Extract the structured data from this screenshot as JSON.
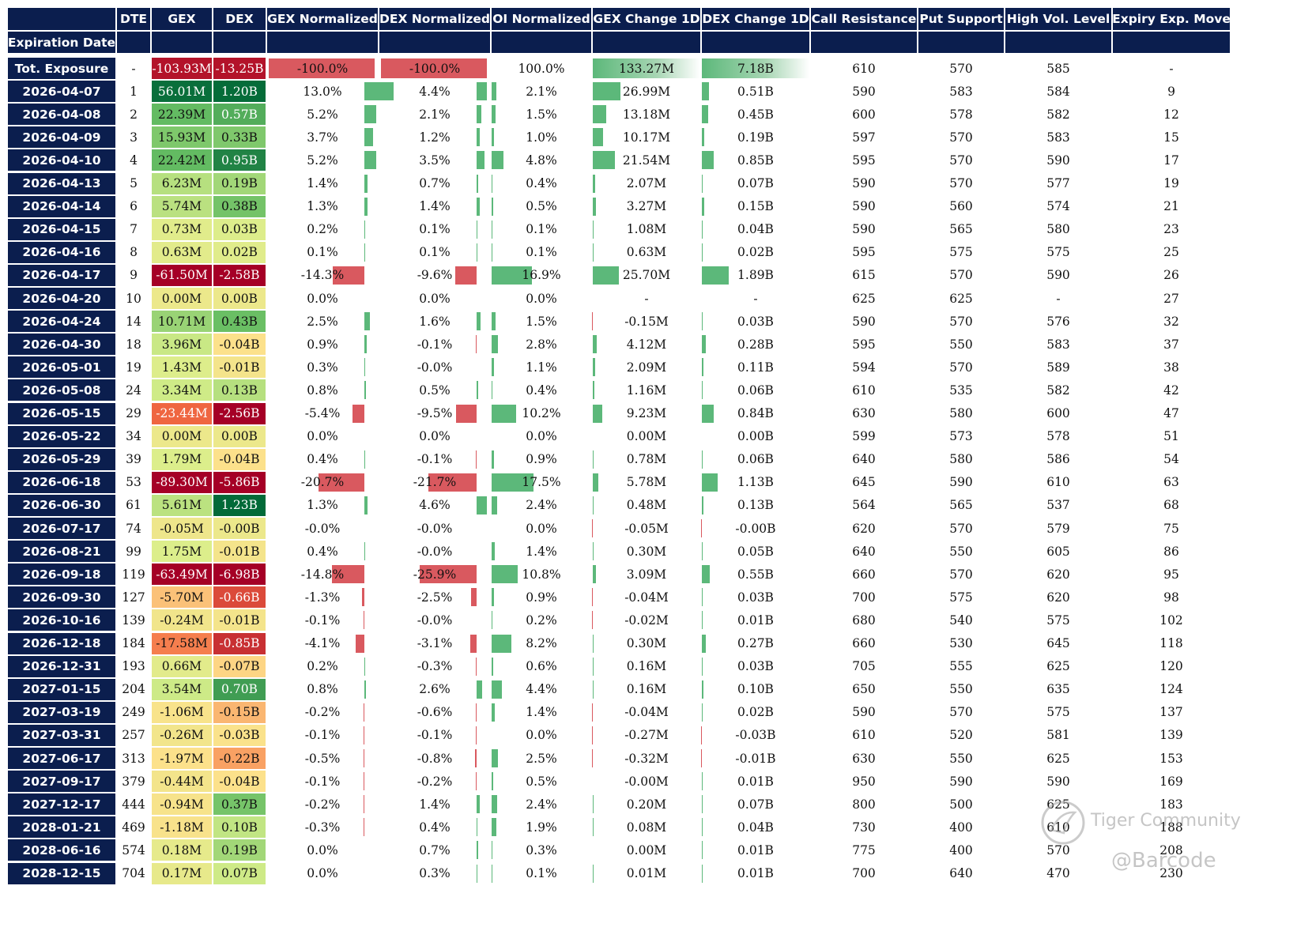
{
  "columns": [
    "DTE",
    "GEX",
    "DEX",
    "GEX Normalized",
    "DEX Normalized",
    "OI Normalized",
    "GEX Change 1D",
    "DEX Change 1D",
    "Call Resistance",
    "Put Support",
    "High Vol. Level",
    "Expiry Exp. Move"
  ],
  "index_label": "Expiration Date",
  "colors": {
    "header_bg": "#0b1e4e",
    "header_text": "#ffffff",
    "bar_positive": "#5cb87a",
    "bar_negative": "#d9595f",
    "gex_scale": [
      "#a50026",
      "#f46d43",
      "#fee08b",
      "#d9ef8b",
      "#66bd63",
      "#006837"
    ]
  },
  "total": {
    "label": "Tot. Exposure",
    "dte": "-",
    "gex": "-103.93M",
    "gex_v": -103.93,
    "dex": "-13.25B",
    "dex_v": -13.25,
    "gex_norm": "-100.0%",
    "gex_norm_v": -100.0,
    "dex_norm": "-100.0%",
    "dex_norm_v": -100.0,
    "oi_norm": "100.0%",
    "oi_norm_v": 100.0,
    "gex_chg": "133.27M",
    "gex_chg_v": 133.27,
    "dex_chg": "7.18B",
    "dex_chg_v": 7.18,
    "call_res": "610",
    "put_sup": "570",
    "hvl": "585",
    "exp_move": "-"
  },
  "rows": [
    {
      "date": "2026-04-07",
      "dte": "1",
      "gex": "56.01M",
      "gex_v": 56.01,
      "dex": "1.20B",
      "dex_v": 1.2,
      "gex_norm": "13.0%",
      "gex_norm_v": 13.0,
      "dex_norm": "4.4%",
      "dex_norm_v": 4.4,
      "oi_norm": "2.1%",
      "oi_norm_v": 2.1,
      "gex_chg": "26.99M",
      "gex_chg_v": 26.99,
      "dex_chg": "0.51B",
      "dex_chg_v": 0.51,
      "call_res": "590",
      "put_sup": "583",
      "hvl": "584",
      "exp_move": "9"
    },
    {
      "date": "2026-04-08",
      "dte": "2",
      "gex": "22.39M",
      "gex_v": 22.39,
      "dex": "0.57B",
      "dex_v": 0.57,
      "gex_norm": "5.2%",
      "gex_norm_v": 5.2,
      "dex_norm": "2.1%",
      "dex_norm_v": 2.1,
      "oi_norm": "1.5%",
      "oi_norm_v": 1.5,
      "gex_chg": "13.18M",
      "gex_chg_v": 13.18,
      "dex_chg": "0.45B",
      "dex_chg_v": 0.45,
      "call_res": "600",
      "put_sup": "578",
      "hvl": "582",
      "exp_move": "12"
    },
    {
      "date": "2026-04-09",
      "dte": "3",
      "gex": "15.93M",
      "gex_v": 15.93,
      "dex": "0.33B",
      "dex_v": 0.33,
      "gex_norm": "3.7%",
      "gex_norm_v": 3.7,
      "dex_norm": "1.2%",
      "dex_norm_v": 1.2,
      "oi_norm": "1.0%",
      "oi_norm_v": 1.0,
      "gex_chg": "10.17M",
      "gex_chg_v": 10.17,
      "dex_chg": "0.19B",
      "dex_chg_v": 0.19,
      "call_res": "597",
      "put_sup": "570",
      "hvl": "583",
      "exp_move": "15"
    },
    {
      "date": "2026-04-10",
      "dte": "4",
      "gex": "22.42M",
      "gex_v": 22.42,
      "dex": "0.95B",
      "dex_v": 0.95,
      "gex_norm": "5.2%",
      "gex_norm_v": 5.2,
      "dex_norm": "3.5%",
      "dex_norm_v": 3.5,
      "oi_norm": "4.8%",
      "oi_norm_v": 4.8,
      "gex_chg": "21.54M",
      "gex_chg_v": 21.54,
      "dex_chg": "0.85B",
      "dex_chg_v": 0.85,
      "call_res": "595",
      "put_sup": "570",
      "hvl": "590",
      "exp_move": "17"
    },
    {
      "date": "2026-04-13",
      "dte": "5",
      "gex": "6.23M",
      "gex_v": 6.23,
      "dex": "0.19B",
      "dex_v": 0.19,
      "gex_norm": "1.4%",
      "gex_norm_v": 1.4,
      "dex_norm": "0.7%",
      "dex_norm_v": 0.7,
      "oi_norm": "0.4%",
      "oi_norm_v": 0.4,
      "gex_chg": "2.07M",
      "gex_chg_v": 2.07,
      "dex_chg": "0.07B",
      "dex_chg_v": 0.07,
      "call_res": "590",
      "put_sup": "570",
      "hvl": "577",
      "exp_move": "19"
    },
    {
      "date": "2026-04-14",
      "dte": "6",
      "gex": "5.74M",
      "gex_v": 5.74,
      "dex": "0.38B",
      "dex_v": 0.38,
      "gex_norm": "1.3%",
      "gex_norm_v": 1.3,
      "dex_norm": "1.4%",
      "dex_norm_v": 1.4,
      "oi_norm": "0.5%",
      "oi_norm_v": 0.5,
      "gex_chg": "3.27M",
      "gex_chg_v": 3.27,
      "dex_chg": "0.15B",
      "dex_chg_v": 0.15,
      "call_res": "590",
      "put_sup": "560",
      "hvl": "574",
      "exp_move": "21"
    },
    {
      "date": "2026-04-15",
      "dte": "7",
      "gex": "0.73M",
      "gex_v": 0.73,
      "dex": "0.03B",
      "dex_v": 0.03,
      "gex_norm": "0.2%",
      "gex_norm_v": 0.2,
      "dex_norm": "0.1%",
      "dex_norm_v": 0.1,
      "oi_norm": "0.1%",
      "oi_norm_v": 0.1,
      "gex_chg": "1.08M",
      "gex_chg_v": 1.08,
      "dex_chg": "0.04B",
      "dex_chg_v": 0.04,
      "call_res": "590",
      "put_sup": "565",
      "hvl": "580",
      "exp_move": "23"
    },
    {
      "date": "2026-04-16",
      "dte": "8",
      "gex": "0.63M",
      "gex_v": 0.63,
      "dex": "0.02B",
      "dex_v": 0.02,
      "gex_norm": "0.1%",
      "gex_norm_v": 0.1,
      "dex_norm": "0.1%",
      "dex_norm_v": 0.1,
      "oi_norm": "0.1%",
      "oi_norm_v": 0.1,
      "gex_chg": "0.63M",
      "gex_chg_v": 0.63,
      "dex_chg": "0.02B",
      "dex_chg_v": 0.02,
      "call_res": "595",
      "put_sup": "575",
      "hvl": "575",
      "exp_move": "25"
    },
    {
      "date": "2026-04-17",
      "dte": "9",
      "gex": "-61.50M",
      "gex_v": -61.5,
      "dex": "-2.58B",
      "dex_v": -2.58,
      "gex_norm": "-14.3%",
      "gex_norm_v": -14.3,
      "dex_norm": "-9.6%",
      "dex_norm_v": -9.6,
      "oi_norm": "16.9%",
      "oi_norm_v": 16.9,
      "gex_chg": "25.70M",
      "gex_chg_v": 25.7,
      "dex_chg": "1.89B",
      "dex_chg_v": 1.89,
      "call_res": "615",
      "put_sup": "570",
      "hvl": "590",
      "exp_move": "26"
    },
    {
      "date": "2026-04-20",
      "dte": "10",
      "gex": "0.00M",
      "gex_v": 0.0,
      "dex": "0.00B",
      "dex_v": 0.0,
      "gex_norm": "0.0%",
      "gex_norm_v": 0.0,
      "dex_norm": "0.0%",
      "dex_norm_v": 0.0,
      "oi_norm": "0.0%",
      "oi_norm_v": 0.0,
      "gex_chg": "-",
      "gex_chg_v": 0,
      "dex_chg": "-",
      "dex_chg_v": 0,
      "call_res": "625",
      "put_sup": "625",
      "hvl": "-",
      "exp_move": "27"
    },
    {
      "date": "2026-04-24",
      "dte": "14",
      "gex": "10.71M",
      "gex_v": 10.71,
      "dex": "0.43B",
      "dex_v": 0.43,
      "gex_norm": "2.5%",
      "gex_norm_v": 2.5,
      "dex_norm": "1.6%",
      "dex_norm_v": 1.6,
      "oi_norm": "1.5%",
      "oi_norm_v": 1.5,
      "gex_chg": "-0.15M",
      "gex_chg_v": -0.15,
      "dex_chg": "0.03B",
      "dex_chg_v": 0.03,
      "call_res": "590",
      "put_sup": "570",
      "hvl": "576",
      "exp_move": "32"
    },
    {
      "date": "2026-04-30",
      "dte": "18",
      "gex": "3.96M",
      "gex_v": 3.96,
      "dex": "-0.04B",
      "dex_v": -0.04,
      "gex_norm": "0.9%",
      "gex_norm_v": 0.9,
      "dex_norm": "-0.1%",
      "dex_norm_v": -0.1,
      "oi_norm": "2.8%",
      "oi_norm_v": 2.8,
      "gex_chg": "4.12M",
      "gex_chg_v": 4.12,
      "dex_chg": "0.28B",
      "dex_chg_v": 0.28,
      "call_res": "595",
      "put_sup": "550",
      "hvl": "583",
      "exp_move": "37"
    },
    {
      "date": "2026-05-01",
      "dte": "19",
      "gex": "1.43M",
      "gex_v": 1.43,
      "dex": "-0.01B",
      "dex_v": -0.01,
      "gex_norm": "0.3%",
      "gex_norm_v": 0.3,
      "dex_norm": "-0.0%",
      "dex_norm_v": -0.0,
      "oi_norm": "1.1%",
      "oi_norm_v": 1.1,
      "gex_chg": "2.09M",
      "gex_chg_v": 2.09,
      "dex_chg": "0.11B",
      "dex_chg_v": 0.11,
      "call_res": "594",
      "put_sup": "570",
      "hvl": "589",
      "exp_move": "38"
    },
    {
      "date": "2026-05-08",
      "dte": "24",
      "gex": "3.34M",
      "gex_v": 3.34,
      "dex": "0.13B",
      "dex_v": 0.13,
      "gex_norm": "0.8%",
      "gex_norm_v": 0.8,
      "dex_norm": "0.5%",
      "dex_norm_v": 0.5,
      "oi_norm": "0.4%",
      "oi_norm_v": 0.4,
      "gex_chg": "1.16M",
      "gex_chg_v": 1.16,
      "dex_chg": "0.06B",
      "dex_chg_v": 0.06,
      "call_res": "610",
      "put_sup": "535",
      "hvl": "582",
      "exp_move": "42"
    },
    {
      "date": "2026-05-15",
      "dte": "29",
      "gex": "-23.44M",
      "gex_v": -23.44,
      "dex": "-2.56B",
      "dex_v": -2.56,
      "gex_norm": "-5.4%",
      "gex_norm_v": -5.4,
      "dex_norm": "-9.5%",
      "dex_norm_v": -9.5,
      "oi_norm": "10.2%",
      "oi_norm_v": 10.2,
      "gex_chg": "9.23M",
      "gex_chg_v": 9.23,
      "dex_chg": "0.84B",
      "dex_chg_v": 0.84,
      "call_res": "630",
      "put_sup": "580",
      "hvl": "600",
      "exp_move": "47"
    },
    {
      "date": "2026-05-22",
      "dte": "34",
      "gex": "0.00M",
      "gex_v": 0.0,
      "dex": "0.00B",
      "dex_v": 0.0,
      "gex_norm": "0.0%",
      "gex_norm_v": 0.0,
      "dex_norm": "0.0%",
      "dex_norm_v": 0.0,
      "oi_norm": "0.0%",
      "oi_norm_v": 0.0,
      "gex_chg": "0.00M",
      "gex_chg_v": 0.0,
      "dex_chg": "0.00B",
      "dex_chg_v": 0.0,
      "call_res": "599",
      "put_sup": "573",
      "hvl": "578",
      "exp_move": "51"
    },
    {
      "date": "2026-05-29",
      "dte": "39",
      "gex": "1.79M",
      "gex_v": 1.79,
      "dex": "-0.04B",
      "dex_v": -0.04,
      "gex_norm": "0.4%",
      "gex_norm_v": 0.4,
      "dex_norm": "-0.1%",
      "dex_norm_v": -0.1,
      "oi_norm": "0.9%",
      "oi_norm_v": 0.9,
      "gex_chg": "0.78M",
      "gex_chg_v": 0.78,
      "dex_chg": "0.06B",
      "dex_chg_v": 0.06,
      "call_res": "640",
      "put_sup": "580",
      "hvl": "586",
      "exp_move": "54"
    },
    {
      "date": "2026-06-18",
      "dte": "53",
      "gex": "-89.30M",
      "gex_v": -89.3,
      "dex": "-5.86B",
      "dex_v": -5.86,
      "gex_norm": "-20.7%",
      "gex_norm_v": -20.7,
      "dex_norm": "-21.7%",
      "dex_norm_v": -21.7,
      "oi_norm": "17.5%",
      "oi_norm_v": 17.5,
      "gex_chg": "5.78M",
      "gex_chg_v": 5.78,
      "dex_chg": "1.13B",
      "dex_chg_v": 1.13,
      "call_res": "645",
      "put_sup": "590",
      "hvl": "610",
      "exp_move": "63"
    },
    {
      "date": "2026-06-30",
      "dte": "61",
      "gex": "5.61M",
      "gex_v": 5.61,
      "dex": "1.23B",
      "dex_v": 1.23,
      "gex_norm": "1.3%",
      "gex_norm_v": 1.3,
      "dex_norm": "4.6%",
      "dex_norm_v": 4.6,
      "oi_norm": "2.4%",
      "oi_norm_v": 2.4,
      "gex_chg": "0.48M",
      "gex_chg_v": 0.48,
      "dex_chg": "0.13B",
      "dex_chg_v": 0.13,
      "call_res": "564",
      "put_sup": "565",
      "hvl": "537",
      "exp_move": "68"
    },
    {
      "date": "2026-07-17",
      "dte": "74",
      "gex": "-0.05M",
      "gex_v": -0.05,
      "dex": "-0.00B",
      "dex_v": -0.0,
      "gex_norm": "-0.0%",
      "gex_norm_v": -0.0,
      "dex_norm": "-0.0%",
      "dex_norm_v": -0.0,
      "oi_norm": "0.0%",
      "oi_norm_v": 0.0,
      "gex_chg": "-0.05M",
      "gex_chg_v": -0.05,
      "dex_chg": "-0.00B",
      "dex_chg_v": -0.003,
      "call_res": "620",
      "put_sup": "570",
      "hvl": "579",
      "exp_move": "75"
    },
    {
      "date": "2026-08-21",
      "dte": "99",
      "gex": "1.75M",
      "gex_v": 1.75,
      "dex": "-0.01B",
      "dex_v": -0.01,
      "gex_norm": "0.4%",
      "gex_norm_v": 0.4,
      "dex_norm": "-0.0%",
      "dex_norm_v": -0.0,
      "oi_norm": "1.4%",
      "oi_norm_v": 1.4,
      "gex_chg": "0.30M",
      "gex_chg_v": 0.3,
      "dex_chg": "0.05B",
      "dex_chg_v": 0.05,
      "call_res": "640",
      "put_sup": "550",
      "hvl": "605",
      "exp_move": "86"
    },
    {
      "date": "2026-09-18",
      "dte": "119",
      "gex": "-63.49M",
      "gex_v": -63.49,
      "dex": "-6.98B",
      "dex_v": -6.98,
      "gex_norm": "-14.8%",
      "gex_norm_v": -14.8,
      "dex_norm": "-25.9%",
      "dex_norm_v": -25.9,
      "oi_norm": "10.8%",
      "oi_norm_v": 10.8,
      "gex_chg": "3.09M",
      "gex_chg_v": 3.09,
      "dex_chg": "0.55B",
      "dex_chg_v": 0.55,
      "call_res": "660",
      "put_sup": "570",
      "hvl": "620",
      "exp_move": "95"
    },
    {
      "date": "2026-09-30",
      "dte": "127",
      "gex": "-5.70M",
      "gex_v": -5.7,
      "dex": "-0.66B",
      "dex_v": -0.66,
      "gex_norm": "-1.3%",
      "gex_norm_v": -1.3,
      "dex_norm": "-2.5%",
      "dex_norm_v": -2.5,
      "oi_norm": "0.9%",
      "oi_norm_v": 0.9,
      "gex_chg": "-0.04M",
      "gex_chg_v": -0.04,
      "dex_chg": "0.03B",
      "dex_chg_v": 0.03,
      "call_res": "700",
      "put_sup": "575",
      "hvl": "620",
      "exp_move": "98"
    },
    {
      "date": "2026-10-16",
      "dte": "139",
      "gex": "-0.24M",
      "gex_v": -0.24,
      "dex": "-0.01B",
      "dex_v": -0.01,
      "gex_norm": "-0.1%",
      "gex_norm_v": -0.1,
      "dex_norm": "-0.0%",
      "dex_norm_v": -0.0,
      "oi_norm": "0.2%",
      "oi_norm_v": 0.2,
      "gex_chg": "-0.02M",
      "gex_chg_v": -0.02,
      "dex_chg": "0.01B",
      "dex_chg_v": 0.01,
      "call_res": "680",
      "put_sup": "540",
      "hvl": "575",
      "exp_move": "102"
    },
    {
      "date": "2026-12-18",
      "dte": "184",
      "gex": "-17.58M",
      "gex_v": -17.58,
      "dex": "-0.85B",
      "dex_v": -0.85,
      "gex_norm": "-4.1%",
      "gex_norm_v": -4.1,
      "dex_norm": "-3.1%",
      "dex_norm_v": -3.1,
      "oi_norm": "8.2%",
      "oi_norm_v": 8.2,
      "gex_chg": "0.30M",
      "gex_chg_v": 0.3,
      "dex_chg": "0.27B",
      "dex_chg_v": 0.27,
      "call_res": "660",
      "put_sup": "530",
      "hvl": "645",
      "exp_move": "118"
    },
    {
      "date": "2026-12-31",
      "dte": "193",
      "gex": "0.66M",
      "gex_v": 0.66,
      "dex": "-0.07B",
      "dex_v": -0.07,
      "gex_norm": "0.2%",
      "gex_norm_v": 0.2,
      "dex_norm": "-0.3%",
      "dex_norm_v": -0.3,
      "oi_norm": "0.6%",
      "oi_norm_v": 0.6,
      "gex_chg": "0.16M",
      "gex_chg_v": 0.16,
      "dex_chg": "0.03B",
      "dex_chg_v": 0.03,
      "call_res": "705",
      "put_sup": "555",
      "hvl": "625",
      "exp_move": "120"
    },
    {
      "date": "2027-01-15",
      "dte": "204",
      "gex": "3.54M",
      "gex_v": 3.54,
      "dex": "0.70B",
      "dex_v": 0.7,
      "gex_norm": "0.8%",
      "gex_norm_v": 0.8,
      "dex_norm": "2.6%",
      "dex_norm_v": 2.6,
      "oi_norm": "4.4%",
      "oi_norm_v": 4.4,
      "gex_chg": "0.16M",
      "gex_chg_v": 0.16,
      "dex_chg": "0.10B",
      "dex_chg_v": 0.1,
      "call_res": "650",
      "put_sup": "550",
      "hvl": "635",
      "exp_move": "124"
    },
    {
      "date": "2027-03-19",
      "dte": "249",
      "gex": "-1.06M",
      "gex_v": -1.06,
      "dex": "-0.15B",
      "dex_v": -0.15,
      "gex_norm": "-0.2%",
      "gex_norm_v": -0.2,
      "dex_norm": "-0.6%",
      "dex_norm_v": -0.6,
      "oi_norm": "1.4%",
      "oi_norm_v": 1.4,
      "gex_chg": "-0.04M",
      "gex_chg_v": -0.04,
      "dex_chg": "0.02B",
      "dex_chg_v": 0.02,
      "call_res": "590",
      "put_sup": "570",
      "hvl": "575",
      "exp_move": "137"
    },
    {
      "date": "2027-03-31",
      "dte": "257",
      "gex": "-0.26M",
      "gex_v": -0.26,
      "dex": "-0.03B",
      "dex_v": -0.03,
      "gex_norm": "-0.1%",
      "gex_norm_v": -0.1,
      "dex_norm": "-0.1%",
      "dex_norm_v": -0.1,
      "oi_norm": "0.0%",
      "oi_norm_v": 0.0,
      "gex_chg": "-0.27M",
      "gex_chg_v": -0.27,
      "dex_chg": "-0.03B",
      "dex_chg_v": -0.03,
      "call_res": "610",
      "put_sup": "520",
      "hvl": "581",
      "exp_move": "139"
    },
    {
      "date": "2027-06-17",
      "dte": "313",
      "gex": "-1.97M",
      "gex_v": -1.97,
      "dex": "-0.22B",
      "dex_v": -0.22,
      "gex_norm": "-0.5%",
      "gex_norm_v": -0.5,
      "dex_norm": "-0.8%",
      "dex_norm_v": -0.8,
      "oi_norm": "2.5%",
      "oi_norm_v": 2.5,
      "gex_chg": "-0.32M",
      "gex_chg_v": -0.32,
      "dex_chg": "-0.01B",
      "dex_chg_v": -0.01,
      "call_res": "630",
      "put_sup": "550",
      "hvl": "625",
      "exp_move": "153"
    },
    {
      "date": "2027-09-17",
      "dte": "379",
      "gex": "-0.44M",
      "gex_v": -0.44,
      "dex": "-0.04B",
      "dex_v": -0.04,
      "gex_norm": "-0.1%",
      "gex_norm_v": -0.1,
      "dex_norm": "-0.2%",
      "dex_norm_v": -0.2,
      "oi_norm": "0.5%",
      "oi_norm_v": 0.5,
      "gex_chg": "-0.00M",
      "gex_chg_v": -0.0,
      "dex_chg": "0.01B",
      "dex_chg_v": 0.01,
      "call_res": "950",
      "put_sup": "590",
      "hvl": "590",
      "exp_move": "169"
    },
    {
      "date": "2027-12-17",
      "dte": "444",
      "gex": "-0.94M",
      "gex_v": -0.94,
      "dex": "0.37B",
      "dex_v": 0.37,
      "gex_norm": "-0.2%",
      "gex_norm_v": -0.2,
      "dex_norm": "1.4%",
      "dex_norm_v": 1.4,
      "oi_norm": "2.4%",
      "oi_norm_v": 2.4,
      "gex_chg": "0.20M",
      "gex_chg_v": 0.2,
      "dex_chg": "0.07B",
      "dex_chg_v": 0.07,
      "call_res": "800",
      "put_sup": "500",
      "hvl": "625",
      "exp_move": "183"
    },
    {
      "date": "2028-01-21",
      "dte": "469",
      "gex": "-1.18M",
      "gex_v": -1.18,
      "dex": "0.10B",
      "dex_v": 0.1,
      "gex_norm": "-0.3%",
      "gex_norm_v": -0.3,
      "dex_norm": "0.4%",
      "dex_norm_v": 0.4,
      "oi_norm": "1.9%",
      "oi_norm_v": 1.9,
      "gex_chg": "0.08M",
      "gex_chg_v": 0.08,
      "dex_chg": "0.04B",
      "dex_chg_v": 0.04,
      "call_res": "730",
      "put_sup": "400",
      "hvl": "610",
      "exp_move": "188"
    },
    {
      "date": "2028-06-16",
      "dte": "574",
      "gex": "0.18M",
      "gex_v": 0.18,
      "dex": "0.19B",
      "dex_v": 0.19,
      "gex_norm": "0.0%",
      "gex_norm_v": 0.0,
      "dex_norm": "0.7%",
      "dex_norm_v": 0.7,
      "oi_norm": "0.3%",
      "oi_norm_v": 0.3,
      "gex_chg": "0.00M",
      "gex_chg_v": 0.0,
      "dex_chg": "0.01B",
      "dex_chg_v": 0.01,
      "call_res": "775",
      "put_sup": "400",
      "hvl": "570",
      "exp_move": "208"
    },
    {
      "date": "2028-12-15",
      "dte": "704",
      "gex": "0.17M",
      "gex_v": 0.17,
      "dex": "0.07B",
      "dex_v": 0.07,
      "gex_norm": "0.0%",
      "gex_norm_v": 0.0,
      "dex_norm": "0.3%",
      "dex_norm_v": 0.3,
      "oi_norm": "0.1%",
      "oi_norm_v": 0.1,
      "gex_chg": "0.01M",
      "gex_chg_v": 0.01,
      "dex_chg": "0.01B",
      "dex_chg_v": 0.01,
      "call_res": "700",
      "put_sup": "640",
      "hvl": "470",
      "exp_move": "230"
    }
  ],
  "watermark": {
    "brand": "Tiger Community",
    "handle": "@Barcode"
  }
}
